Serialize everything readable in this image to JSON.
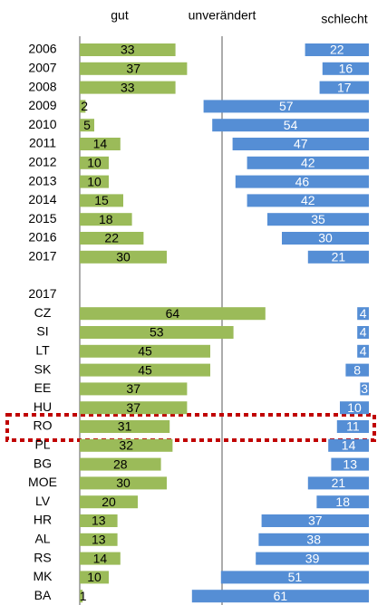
{
  "chart_data": {
    "type": "diverging-bar",
    "center_label": "unverändert",
    "categories": [
      "2006",
      "2007",
      "2008",
      "2009",
      "2010",
      "2011",
      "2012",
      "2013",
      "2014",
      "2015",
      "2016",
      "2017",
      null,
      "2017",
      "CZ",
      "SI",
      "LT",
      "SK",
      "EE",
      "HU",
      "RO",
      "PL",
      "BG",
      "MOE",
      "LV",
      "HR",
      "AL",
      "RS",
      "MK",
      "BA"
    ],
    "series": [
      {
        "name": "gut",
        "color": "#9bbb59",
        "side": "left",
        "values": [
          33,
          37,
          33,
          2,
          5,
          14,
          10,
          10,
          15,
          18,
          22,
          30,
          null,
          null,
          64,
          53,
          45,
          45,
          37,
          37,
          31,
          32,
          28,
          30,
          20,
          13,
          13,
          14,
          10,
          1
        ]
      },
      {
        "name": "schlecht",
        "color": "#558ed5",
        "side": "right",
        "values": [
          22,
          16,
          17,
          57,
          54,
          47,
          42,
          46,
          42,
          35,
          30,
          21,
          null,
          null,
          4,
          4,
          4,
          8,
          3,
          10,
          11,
          14,
          13,
          21,
          18,
          37,
          38,
          39,
          51,
          61
        ]
      }
    ]
  }
}
